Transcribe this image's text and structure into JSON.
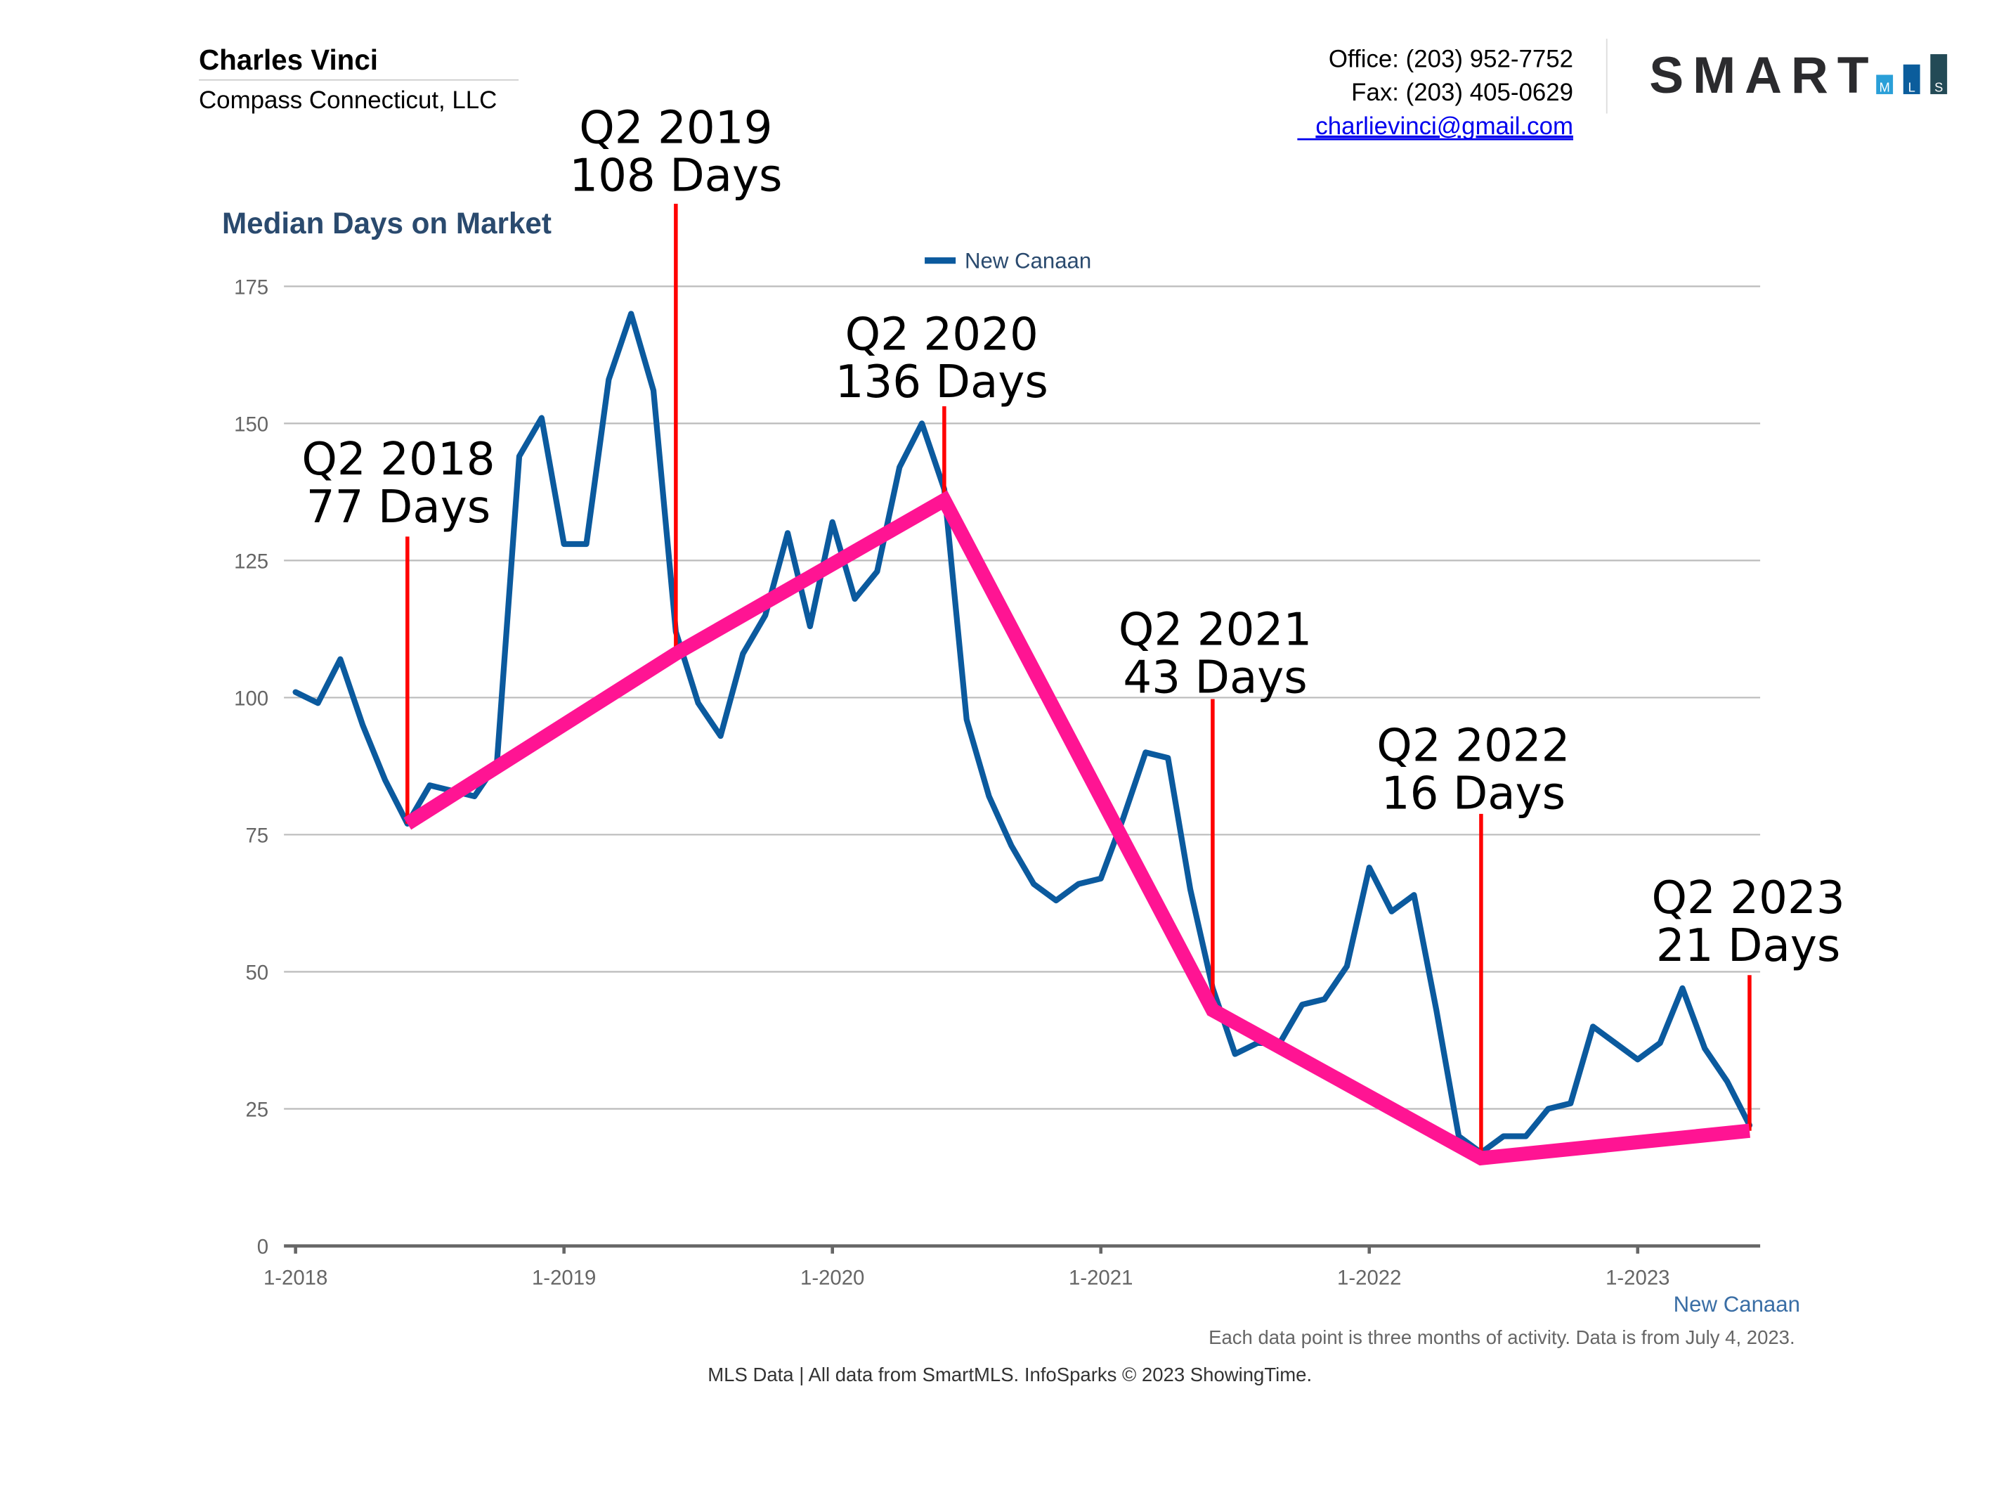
{
  "header": {
    "agent_name": "Charles Vinci",
    "brokerage": "Compass Connecticut, LLC",
    "office": "Office: (203) 952-7752",
    "fax": "Fax: (203) 405-0629",
    "email": "charlievinci@gmail.com",
    "logo": {
      "text": "SMART",
      "sub": [
        "M",
        "L",
        "S"
      ],
      "colors": [
        "#2a9fd8",
        "#0b5d9c",
        "#234a56"
      ],
      "text_color": "#2b2b2e"
    }
  },
  "chart_data": {
    "type": "line",
    "title": "Median Days on Market",
    "legend": {
      "entries": [
        "New Canaan"
      ],
      "placement": "top-center"
    },
    "series_label_bottom": "New Canaan",
    "x_tick_labels": [
      "1-2018",
      "1-2019",
      "1-2020",
      "1-2021",
      "1-2022",
      "1-2023"
    ],
    "x_range": [
      "1-2018",
      "6-2023"
    ],
    "ylim": [
      0,
      175
    ],
    "y_ticks": [
      0,
      25,
      50,
      75,
      100,
      125,
      150,
      175
    ],
    "grid": true,
    "colors": {
      "series": "#0b5a9e",
      "trend": "#ff1493",
      "annotation_line": "#ff0000",
      "title": "#2a4a6e"
    },
    "series": [
      {
        "name": "New Canaan",
        "x_start": "1-2018",
        "interval": "monthly",
        "values": [
          101,
          99,
          107,
          95,
          85,
          77,
          84,
          83,
          82,
          88,
          144,
          151,
          128,
          128,
          158,
          170,
          156,
          112,
          99,
          93,
          108,
          115,
          130,
          113,
          132,
          118,
          123,
          142,
          150,
          138,
          96,
          82,
          73,
          66,
          63,
          66,
          67,
          78,
          90,
          89,
          65,
          47,
          35,
          37,
          37,
          44,
          45,
          51,
          69,
          61,
          64,
          43,
          20,
          17,
          20,
          20,
          25,
          26,
          40,
          37,
          34,
          37,
          47,
          36,
          30,
          22
        ]
      }
    ],
    "trend": {
      "points": [
        {
          "month": "6-2018",
          "value": 77
        },
        {
          "month": "6-2019",
          "value": 108
        },
        {
          "month": "6-2020",
          "value": 136
        },
        {
          "month": "6-2021",
          "value": 43
        },
        {
          "month": "6-2022",
          "value": 16
        },
        {
          "month": "6-2023",
          "value": 21
        }
      ]
    },
    "annotations": [
      {
        "line1": "Q2 2018",
        "line2": "77 Days"
      },
      {
        "line1": "Q2 2019",
        "line2": "108 Days"
      },
      {
        "line1": "Q2 2020",
        "line2": "136 Days"
      },
      {
        "line1": "Q2 2021",
        "line2": "43 Days"
      },
      {
        "line1": "Q2 2022",
        "line2": "16 Days"
      },
      {
        "line1": "Q2 2023",
        "line2": "21 Days"
      }
    ],
    "note": "Each data point is three months of activity. Data is from July 4, 2023."
  },
  "footer": "MLS Data | All data from SmartMLS. InfoSparks © 2023 ShowingTime."
}
